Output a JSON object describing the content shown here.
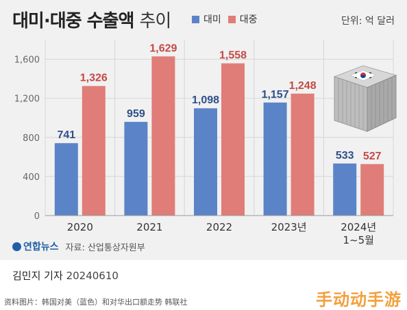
{
  "header": {
    "title_bold": "대미·대중 수출액",
    "title_light": "추이",
    "unit": "단위: 억 달러"
  },
  "legend": [
    {
      "name": "대미",
      "color": "#5b84c8"
    },
    {
      "name": "대중",
      "color": "#e07d78"
    }
  ],
  "chart_data": {
    "type": "bar",
    "categories": [
      "2020",
      "2021",
      "2022",
      "2023년",
      "2024년\n1~5월"
    ],
    "series": [
      {
        "name": "대미",
        "color": "#5b84c8",
        "values": [
          741,
          959,
          1098,
          1157,
          533
        ]
      },
      {
        "name": "대중",
        "color": "#e07d78",
        "values": [
          1326,
          1629,
          1558,
          1248,
          527
        ]
      }
    ],
    "value_labels": [
      [
        "741",
        "959",
        "1,098",
        "1,157",
        "533"
      ],
      [
        "1,326",
        "1,629",
        "1,558",
        "1,248",
        "527"
      ]
    ],
    "yticks": [
      "0",
      "400",
      "800",
      "1,200",
      "1,600"
    ],
    "ylim": [
      0,
      1800
    ],
    "grid": true,
    "icon": "container-with-korean-flag-icon"
  },
  "footer": {
    "logo_text": "연합뉴스",
    "source": "자료: 산업통상자원부",
    "byline_name": "김민지 기자",
    "byline_date": "20240610",
    "caption": "资料图片：韩国对美（蓝色）和对华出口额走势 韩联社",
    "watermark": "手动动手游"
  }
}
